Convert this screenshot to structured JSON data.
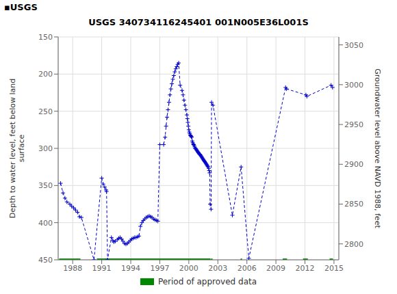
{
  "chart_data": {
    "type": "line",
    "title": "USGS 340734116245401 001N005E36L001S",
    "annotations": [
      "▪USGS"
    ],
    "y_label": "Depth to water level, feet below land\nsurface",
    "y2_label": "Groundwater level above NAVD 1988, feet",
    "x": [
      1986.75,
      1987.0,
      1987.2,
      1987.4,
      1987.7,
      1987.9,
      1988.1,
      1988.3,
      1988.5,
      1988.7,
      1988.9,
      1990.2,
      1991.0,
      1991.15,
      1991.3,
      1991.45,
      1991.5,
      1991.6,
      1992.0,
      1992.15,
      1992.25,
      1992.4,
      1992.6,
      1992.75,
      1992.9,
      1993.05,
      1993.2,
      1993.35,
      1993.5,
      1993.65,
      1993.8,
      1993.95,
      1994.1,
      1994.25,
      1994.4,
      1994.55,
      1994.7,
      1994.85,
      1995.0,
      1995.15,
      1995.3,
      1995.45,
      1995.6,
      1995.75,
      1995.9,
      1996.05,
      1996.2,
      1996.35,
      1996.5,
      1996.65,
      1996.8,
      1997.0,
      1997.4,
      1997.55,
      1997.65,
      1997.75,
      1997.85,
      1997.95,
      1998.05,
      1998.15,
      1998.25,
      1998.35,
      1998.45,
      1998.55,
      1998.65,
      1998.75,
      1998.85,
      1998.95,
      1999.1,
      1999.3,
      1999.4,
      1999.5,
      1999.6,
      1999.7,
      1999.8,
      1999.85,
      1999.9,
      1999.95,
      2000.0,
      2000.05,
      2000.1,
      2000.15,
      2000.2,
      2000.25,
      2000.3,
      2000.35,
      2000.4,
      2000.45,
      2000.5,
      2000.55,
      2000.6,
      2000.65,
      2000.7,
      2000.75,
      2000.8,
      2000.85,
      2000.9,
      2000.95,
      2001.0,
      2001.05,
      2001.1,
      2001.15,
      2001.2,
      2001.25,
      2001.3,
      2001.35,
      2001.4,
      2001.45,
      2001.5,
      2001.55,
      2001.6,
      2001.65,
      2001.7,
      2001.75,
      2001.8,
      2001.85,
      2001.9,
      2001.95,
      2002.0,
      2002.05,
      2002.1,
      2002.15,
      2002.2,
      2002.3,
      2002.35,
      2002.5,
      2004.5,
      2005.4,
      2006.2,
      2010.0,
      2010.1,
      2012.1,
      2012.2,
      2014.7,
      2014.85
    ],
    "series": [
      {
        "values": [
          347,
          360,
          367,
          372,
          375,
          378,
          380,
          383,
          386,
          392,
          393,
          450,
          340,
          348,
          352,
          356,
          358,
          450,
          420,
          424,
          426,
          425,
          423,
          421,
          420,
          422,
          425,
          428,
          429,
          428,
          426,
          424,
          422,
          421,
          420,
          420,
          419,
          418,
          405,
          400,
          397,
          395,
          393,
          392,
          391,
          392,
          393,
          395,
          396,
          397,
          398,
          295,
          295,
          285,
          270,
          258,
          248,
          238,
          228,
          220,
          213,
          207,
          202,
          197,
          193,
          190,
          187,
          185,
          215,
          222,
          228,
          235,
          242,
          248,
          255,
          260,
          265,
          270,
          275,
          278,
          280,
          282,
          283,
          284,
          285,
          290,
          292,
          294,
          295,
          296,
          298,
          300,
          300,
          301,
          302,
          303,
          304,
          305,
          306,
          307,
          308,
          308,
          309,
          310,
          311,
          312,
          313,
          314,
          315,
          316,
          317,
          318,
          319,
          320,
          321,
          322,
          323,
          324,
          325,
          327,
          330,
          333,
          375,
          382,
          238,
          242,
          390,
          325,
          448,
          218,
          220,
          228,
          230,
          215,
          218
        ],
        "color": "#0000cc",
        "marker": "plus",
        "line_style": "dashed"
      },
      {
        "name": "Period of approved data",
        "type": "bar",
        "orientation": "horizontal",
        "color": "#008800",
        "periods": [
          [
            1986.6,
            1988.8
          ],
          [
            1990.5,
            2002.25
          ],
          [
            2002.3,
            2002.45
          ],
          [
            2005.35,
            2005.5
          ],
          [
            2009.7,
            2010.15
          ],
          [
            2011.8,
            2012.3
          ],
          [
            2014.55,
            2014.9
          ]
        ],
        "y": 450,
        "height": 3.5
      }
    ],
    "xlim": [
      1986.5,
      2015.5
    ],
    "xticks": [
      1988,
      1991,
      1994,
      1997,
      2000,
      2003,
      2006,
      2009,
      2012,
      2015
    ],
    "ylim": [
      450,
      150
    ],
    "yticks": [
      150,
      200,
      250,
      300,
      350,
      400,
      450
    ],
    "y2lim": [
      2780,
      3060
    ],
    "y2ticks": [
      2800,
      2850,
      2900,
      2950,
      3000,
      3050
    ],
    "grid": true,
    "legend": "bottom"
  }
}
